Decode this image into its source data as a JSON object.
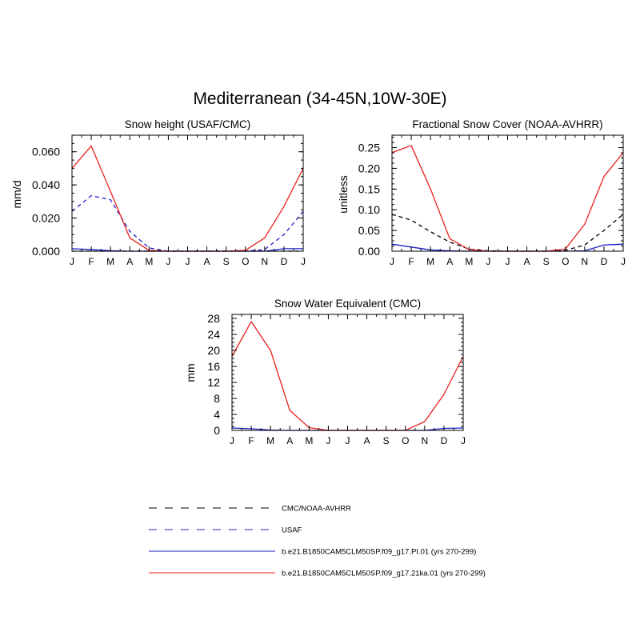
{
  "figure": {
    "title": "Mediterranean (34-45N,10W-30E)"
  },
  "colors": {
    "red": "#e8211e",
    "blue": "#1f1fc8",
    "black": "#000000"
  },
  "legend": {
    "entries": [
      {
        "label": "CMC/NOAA-AVHRR",
        "color": "#000000",
        "style": "dashed"
      },
      {
        "label": "USAF",
        "color": "#1f1fc8",
        "style": "dashed"
      },
      {
        "label": "b.e21.B1850CAM5CLM50SP.f09_g17.PI.01 (yrs 270-299)",
        "color": "#1f1fc8",
        "style": "solid"
      },
      {
        "label": "b.e21.B1850CAM5CLM50SP.f09_g17.21ka.01 (yrs 270-299)",
        "color": "#e8211e",
        "style": "solid"
      }
    ]
  },
  "chart_data": [
    {
      "type": "line",
      "title": "Snow height (USAF/CMC)",
      "xlabel": "",
      "ylabel": "mm/d",
      "categories": [
        "J",
        "F",
        "M",
        "A",
        "M",
        "J",
        "J",
        "A",
        "S",
        "O",
        "N",
        "D",
        "J"
      ],
      "ylim": [
        0,
        0.07
      ],
      "yticks": [
        0.0,
        0.02,
        0.04,
        0.06
      ],
      "ytick_labels": [
        "0.000",
        "0.020",
        "0.040",
        "0.060"
      ],
      "series": [
        {
          "name": "CMC/NOAA-AVHRR",
          "color": "#000000",
          "style": "dashed",
          "values": [
            0,
            0,
            0,
            0,
            0,
            0,
            0,
            0,
            0,
            0,
            0,
            0,
            0
          ]
        },
        {
          "name": "USAF",
          "color": "#1f1fc8",
          "style": "dashed",
          "values": [
            0.024,
            0.0335,
            0.031,
            0.012,
            0.002,
            0,
            0,
            0,
            0,
            0,
            0.001,
            0.01,
            0.024
          ]
        },
        {
          "name": "b.e21.B1850CAM5CLM50SP.f09_g17.PI.01 (yrs 270-299)",
          "color": "#1f1fc8",
          "style": "solid",
          "values": [
            0.0015,
            0.001,
            0.0003,
            0,
            0,
            0,
            0,
            0,
            0,
            0,
            0,
            0.0015,
            0.0015
          ]
        },
        {
          "name": "b.e21.B1850CAM5CLM50SP.f09_g17.21ka.01 (yrs 270-299)",
          "color": "#e8211e",
          "style": "solid",
          "values": [
            0.05,
            0.0635,
            0.036,
            0.008,
            0.0005,
            0,
            0,
            0,
            0,
            0.0005,
            0.008,
            0.027,
            0.05
          ]
        }
      ]
    },
    {
      "type": "line",
      "title": "Fractional Snow Cover (NOAA-AVHRR)",
      "xlabel": "",
      "ylabel": "unitless",
      "categories": [
        "J",
        "F",
        "M",
        "A",
        "M",
        "J",
        "J",
        "A",
        "S",
        "O",
        "N",
        "D",
        "J"
      ],
      "ylim": [
        0,
        0.28
      ],
      "yticks": [
        0.0,
        0.05,
        0.1,
        0.15,
        0.2,
        0.25
      ],
      "ytick_labels": [
        "0.00",
        "0.05",
        "0.10",
        "0.15",
        "0.20",
        "0.25"
      ],
      "series": [
        {
          "name": "CMC/NOAA-AVHRR",
          "color": "#000000",
          "style": "dashed",
          "values": [
            0.089,
            0.075,
            0.047,
            0.022,
            0.005,
            0.001,
            0,
            0,
            0,
            0.002,
            0.015,
            0.05,
            0.089
          ]
        },
        {
          "name": "b.e21.B1850CAM5CLM50SP.f09_g17.PI.01 (yrs 270-299)",
          "color": "#1f1fc8",
          "style": "solid",
          "values": [
            0.017,
            0.01,
            0.003,
            0.001,
            0,
            0,
            0,
            0,
            0,
            0,
            0.001,
            0.015,
            0.017
          ]
        },
        {
          "name": "b.e21.B1850CAM5CLM50SP.f09_g17.21ka.01 (yrs 270-299)",
          "color": "#e8211e",
          "style": "solid",
          "values": [
            0.238,
            0.255,
            0.15,
            0.03,
            0.004,
            0,
            0,
            0,
            0,
            0.005,
            0.065,
            0.18,
            0.238
          ]
        }
      ]
    },
    {
      "type": "line",
      "title": "Snow Water Equivalent (CMC)",
      "xlabel": "",
      "ylabel": "mm",
      "categories": [
        "J",
        "F",
        "M",
        "A",
        "M",
        "J",
        "J",
        "A",
        "S",
        "O",
        "N",
        "D",
        "J"
      ],
      "ylim": [
        0,
        29
      ],
      "yticks": [
        0,
        4,
        8,
        12,
        16,
        20,
        24,
        28
      ],
      "ytick_labels": [
        "0",
        "4",
        "8",
        "12",
        "16",
        "20",
        "24",
        "28"
      ],
      "series": [
        {
          "name": "b.e21.B1850CAM5CLM50SP.f09_g17.PI.01 (yrs 270-299)",
          "color": "#1f1fc8",
          "style": "solid",
          "values": [
            0.6,
            0.4,
            0.1,
            0,
            0,
            0,
            0,
            0,
            0,
            0,
            0,
            0.5,
            0.6
          ]
        },
        {
          "name": "b.e21.B1850CAM5CLM50SP.f09_g17.21ka.01 (yrs 270-299)",
          "color": "#e8211e",
          "style": "solid",
          "values": [
            18.5,
            27.2,
            20,
            5,
            0.7,
            0,
            0,
            0,
            0,
            0,
            2.2,
            9,
            18.5
          ]
        }
      ]
    }
  ]
}
